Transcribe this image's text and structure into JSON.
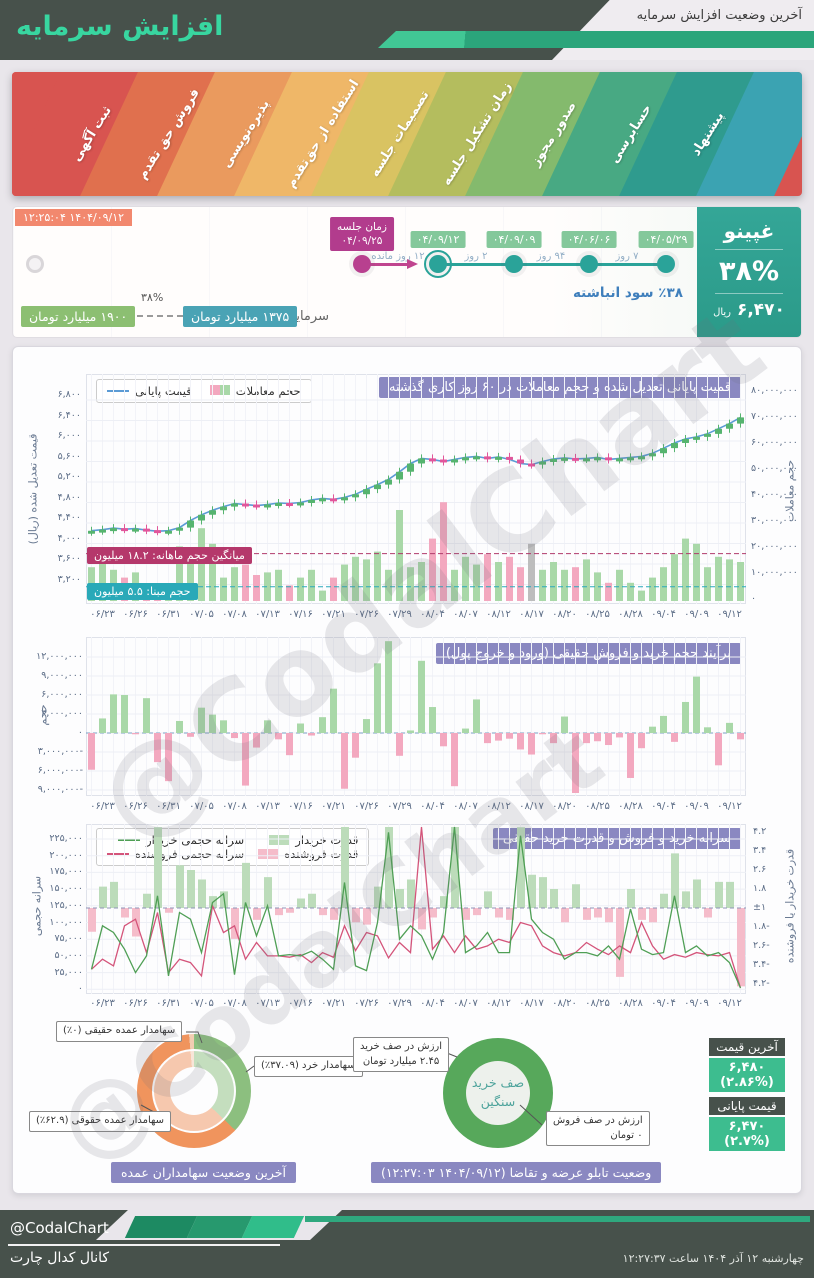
{
  "header": {
    "title": "افزایش سرمایه",
    "subtitle": "آخرین وضعیت افزایش سرمایه"
  },
  "ribbon": {
    "stages": [
      {
        "label": "ثبت آگهی",
        "color": "#d85450"
      },
      {
        "label": "فروش حق تقدم",
        "color": "#e0704e"
      },
      {
        "label": "پذیره‌نویسی",
        "color": "#ea9a5e"
      },
      {
        "label": "استفاده از حق‌تقدم",
        "color": "#efb768"
      },
      {
        "label": "تصمیمات جلسه",
        "color": "#d9c362"
      },
      {
        "label": "زمان تشکیل جلسه",
        "color": "#b4bd5e"
      },
      {
        "label": "صدور مجوز",
        "color": "#84ba6d"
      },
      {
        "label": "حسابرسی",
        "color": "#48a983"
      },
      {
        "label": "پیشنهاد",
        "color": "#2f9b8e"
      },
      {
        "label": "",
        "color": "#3ba3b2"
      }
    ]
  },
  "timeline": {
    "updated_badge": "۱۴۰۴/۰۹/۱۲ ۱۲:۲۵:۰۴",
    "symbol_panel": {
      "symbol": "غپینو",
      "percent": "۳۸%",
      "price": "۶,۴۷۰",
      "price_unit": "ریال"
    },
    "events": [
      {
        "date": "۰۴/۰۵/۲۹",
        "gap_after": "۷ روز"
      },
      {
        "date": "۰۴/۰۶/۰۶",
        "gap_after": "۹۴ روز"
      },
      {
        "date": "۰۴/۰۹/۰۹",
        "gap_after": "۲ روز"
      },
      {
        "date": "۰۴/۰۹/۱۲",
        "current": true,
        "gap_after": "۱۲ روز مانده"
      }
    ],
    "meeting": {
      "label": "زمان جلسه",
      "date": "۰۴/۰۹/۲۵"
    },
    "accumulated_profit": "٪۳۸ سود انباشته",
    "capital_label": "سرمایه:",
    "capital_current": "۱۳۷۵ میلیارد تومان",
    "capital_percent": "۳۸%",
    "capital_new": "۱۹۰۰ میلیارد تومان"
  },
  "chart_data": [
    {
      "id": "price_volume",
      "type": "candlestick+line+bar",
      "title": "قمیت پایانی تعدیل شده و حجم معاملات در ۶۰ روز کاری گذشته",
      "legend": [
        {
          "label": "قیمت پایانی",
          "swatch": "line",
          "color": "#5b9bd5"
        },
        {
          "label": "حجم معاملات",
          "swatch": "squares",
          "colors": [
            "#a9d8a8",
            "#f3a8bf"
          ]
        }
      ],
      "ylabel_left": "قیمت تعدیل شده (ریال)",
      "ylabel_right": "حجم معاملات",
      "yticks_left": [
        "۶,۸۰۰",
        "۶,۴۰۰",
        "۶,۰۰۰",
        "۵,۶۰۰",
        "۵,۲۰۰",
        "۴,۸۰۰",
        "۴,۴۰۰",
        "۴,۰۰۰",
        "۳,۶۰۰",
        "۳,۲۰۰"
      ],
      "yticks_right": [
        "۸۰,۰۰۰,۰۰۰",
        "۷۰,۰۰۰,۰۰۰",
        "۶۰,۰۰۰,۰۰۰",
        "۵۰,۰۰۰,۰۰۰",
        "۴۰,۰۰۰,۰۰۰",
        "۳۰,۰۰۰,۰۰۰",
        "۲۰,۰۰۰,۰۰۰",
        "۱۰,۰۰۰,۰۰۰",
        "۰"
      ],
      "ylim_left": [
        3200,
        6800
      ],
      "ylim_right_millions": [
        0,
        80
      ],
      "x_labels": [
        "۰۶/۲۳",
        "۰۶/۲۶",
        "۰۶/۳۱",
        "۰۷/۰۵",
        "۰۷/۰۸",
        "۰۷/۱۳",
        "۰۷/۱۶",
        "۰۷/۲۱",
        "۰۷/۲۶",
        "۰۷/۲۹",
        "۰۸/۰۴",
        "۰۸/۰۷",
        "۰۸/۱۲",
        "۰۸/۱۷",
        "۰۸/۲۰",
        "۰۸/۲۵",
        "۰۸/۲۸",
        "۰۹/۰۴",
        "۰۹/۰۹",
        "۰۹/۱۲"
      ],
      "close": [
        4250,
        4270,
        4300,
        4280,
        4290,
        4260,
        4240,
        4250,
        4310,
        4450,
        4560,
        4650,
        4720,
        4780,
        4760,
        4740,
        4760,
        4790,
        4780,
        4800,
        4850,
        4880,
        4860,
        4900,
        4960,
        5060,
        5150,
        5250,
        5400,
        5560,
        5660,
        5640,
        5600,
        5640,
        5680,
        5700,
        5660,
        5690,
        5640,
        5560,
        5540,
        5600,
        5650,
        5670,
        5650,
        5660,
        5680,
        5640,
        5660,
        5680,
        5700,
        5760,
        5860,
        5960,
        6040,
        6080,
        6140,
        6240,
        6340,
        6460
      ],
      "volume_millions": [
        13,
        15,
        12,
        9,
        11,
        5,
        3,
        6,
        21,
        16,
        28,
        22,
        9,
        13,
        14,
        10,
        11,
        12,
        6,
        9,
        12,
        4,
        9,
        14,
        17,
        16,
        19,
        12,
        35,
        13,
        15,
        24,
        38,
        12,
        17,
        14,
        18,
        15,
        17,
        13,
        22,
        12,
        15,
        12,
        13,
        16,
        11,
        7,
        12,
        7,
        4,
        9,
        13,
        18,
        24,
        22,
        13,
        17,
        16,
        15
      ],
      "volume_gray_index": 40,
      "avg_monthly_volume": {
        "label": "میانگین حجم ماهانه: ۱۸.۲ میلیون",
        "value_millions": 18.2,
        "color": "#b03a6b"
      },
      "base_volume": {
        "label": "حجم مبنا: ۵.۵ میلیون",
        "value_millions": 5.5,
        "color": "#2aa9bc"
      }
    },
    {
      "id": "money_flow",
      "type": "bar",
      "title": "برآیند حجم خرید و فروش حقیقی (ورود و خروج پول)",
      "ylabel": "حجم",
      "yticks": [
        "۱۲,۰۰۰,۰۰۰",
        "۹,۰۰۰,۰۰۰",
        "۶,۰۰۰,۰۰۰",
        "۳,۰۰۰,۰۰۰",
        "۰",
        "-۳,۰۰۰,۰۰۰",
        "-۶,۰۰۰,۰۰۰",
        "-۹,۰۰۰,۰۰۰"
      ],
      "ylim_millions": [
        -10.5,
        13
      ],
      "values_millions": [
        -5.8,
        2.3,
        6.1,
        6.0,
        -0.2,
        5.5,
        -4.6,
        -7.6,
        1.9,
        -0.6,
        4.0,
        2.9,
        2.0,
        -0.8,
        -8.3,
        -2.3,
        2.0,
        -1.0,
        -3.5,
        1.5,
        -0.4,
        2.5,
        7.0,
        -8.8,
        -3.9,
        2.2,
        11.0,
        14.5,
        -3.6,
        0.4,
        11.4,
        4.1,
        -2.1,
        -8.4,
        0.7,
        5.3,
        -1.6,
        -1.2,
        -0.9,
        -2.6,
        -3.4,
        -0.2,
        -1.6,
        2.6,
        -10.6,
        -1.6,
        -1.3,
        -1.9,
        -0.7,
        -7.1,
        -2.4,
        1.0,
        2.7,
        -1.4,
        4.9,
        8.9,
        0.9,
        -5.1,
        1.6,
        -1.0
      ],
      "colors": {
        "positive": "#a9d8a8",
        "negative": "#f3a8bf"
      }
    },
    {
      "id": "per_capita_power",
      "type": "bar+line",
      "title": "سرانه خرید و فروش و قدرت خرید حقیقی",
      "legend": [
        {
          "label": "سرانه حجمی خریدار",
          "swatch": "line",
          "color": "#4f9f55"
        },
        {
          "label": "سرانه حجمی فروشنده",
          "swatch": "line",
          "color": "#d4547a"
        },
        {
          "label": "قدرت خریدار",
          "swatch": "bar",
          "color": "#bcdcba"
        },
        {
          "label": "قدرت فروشنده",
          "swatch": "bar",
          "color": "#f5bcca"
        }
      ],
      "ylabel_left": "سرانه حجمی",
      "ylabel_right": "قدرت خریدار یا فروشنده",
      "yticks_left": [
        "۲۲۵,۰۰۰",
        "۲۰۰,۰۰۰",
        "۱۷۵,۰۰۰",
        "۱۵۰,۰۰۰",
        "۱۲۵,۰۰۰",
        "۱۰۰,۰۰۰",
        "۷۵,۰۰۰",
        "۵۰,۰۰۰",
        "۲۵,۰۰۰",
        "۰"
      ],
      "yticks_right": [
        "۴.۲",
        "۳.۴",
        "۲.۶",
        "۱.۸",
        "±۱",
        "-۱.۸",
        "-۲.۶",
        "-۳.۴",
        "-۴.۲"
      ],
      "ylim_left_thousands": [
        0,
        225
      ],
      "ylim_right": [
        -4.2,
        4.2
      ],
      "buyer_per_capita_thousands": [
        30,
        95,
        85,
        60,
        25,
        50,
        140,
        20,
        115,
        105,
        55,
        130,
        143,
        22,
        130,
        80,
        125,
        50,
        52,
        50,
        57,
        45,
        30,
        160,
        35,
        28,
        100,
        235,
        75,
        95,
        80,
        45,
        85,
        250,
        55,
        65,
        85,
        55,
        55,
        230,
        105,
        85,
        75,
        45,
        55,
        55,
        50,
        65,
        45,
        120,
        60,
        52,
        55,
        140,
        55,
        65,
        50,
        55,
        40,
        2
      ],
      "seller_per_capita_thousands": [
        30,
        45,
        35,
        95,
        105,
        55,
        115,
        25,
        45,
        40,
        20,
        125,
        85,
        95,
        45,
        70,
        50,
        50,
        48,
        52,
        40,
        55,
        48,
        95,
        58,
        85,
        80,
        47,
        70,
        55,
        245,
        60,
        80,
        55,
        80,
        60,
        65,
        75,
        70,
        100,
        95,
        65,
        55,
        50,
        55,
        70,
        60,
        52,
        65,
        55,
        100,
        65,
        45,
        52,
        48,
        55,
        52,
        50,
        55,
        2
      ],
      "power_ratio": [
        -2.0,
        1.9,
        2.1,
        -1.4,
        -2.2,
        1.6,
        4.4,
        -1.2,
        2.8,
        2.6,
        2.2,
        1.5,
        1.7,
        -2.3,
        2.9,
        -1.5,
        2.3,
        -1.3,
        -1.2,
        1.4,
        1.6,
        -1.3,
        -1.5,
        4.6,
        -1.6,
        -1.7,
        1.9,
        5.0,
        1.8,
        2.2,
        -1.9,
        -1.4,
        1.5,
        4.8,
        -1.5,
        -1.3,
        1.7,
        -1.4,
        -1.5,
        4.4,
        2.4,
        2.3,
        1.8,
        -1.6,
        2.0,
        -1.5,
        -1.4,
        -1.6,
        -3.9,
        1.8,
        -1.5,
        -1.6,
        1.6,
        3.3,
        1.7,
        2.2,
        -1.4,
        2.1,
        2.1,
        -4.3
      ]
    },
    {
      "id": "major_shareholders",
      "type": "pie",
      "title": "آخرین وضعیت سهامداران عمده",
      "slices": [
        {
          "label": "سهامدار خرد (۳۷.۰۹٪)",
          "value": 37.09,
          "color": "#8cbf7f"
        },
        {
          "label": "سهامدار عمده حقوقی (۶۲.۹٪)",
          "value": 62.9,
          "color": "#f0945d"
        },
        {
          "label": "سهامدار عمده حقیقی (۰٪)",
          "value": 0,
          "color": "#f2cdb2"
        }
      ]
    },
    {
      "id": "order_book",
      "type": "pie",
      "title": "وضعیت تابلو عرضه و تقاضا (۱۴۰۴/۰۹/۱۲ ۱۲:۲۷:۰۳)",
      "ring_color": "#57a85b",
      "center_lines": [
        "صف خرید",
        "سنگین"
      ],
      "buy_queue": {
        "lines": [
          "ارزش در صف خرید",
          "۲.۴۵ میلیارد تومان"
        ]
      },
      "sell_queue": {
        "lines": [
          "ارزش در صف فروش",
          "۰ تومان"
        ]
      }
    }
  ],
  "quotes": {
    "last_price": {
      "label": "آخرین قیمت",
      "value": "۶,۴۸۰ (۲.۸۶%)"
    },
    "close_price": {
      "label": "قیمت پایانی",
      "value": "۶,۴۷۰ (۲.۷%)"
    }
  },
  "footer": {
    "handle": "@CodalChart",
    "channel": "کانال کدال چارت",
    "datetime": "چهارشنبه ۱۲ آذر ۱۴۰۴ ساعت ۱۲:۲۷:۳۷"
  },
  "watermark": "@CodalChart"
}
